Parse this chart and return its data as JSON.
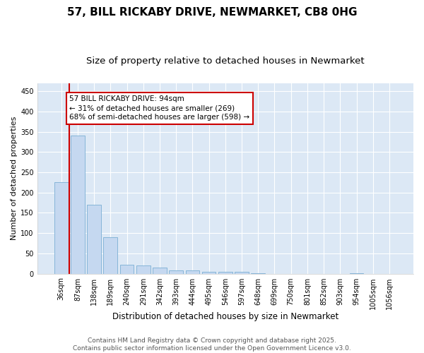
{
  "title": "57, BILL RICKABY DRIVE, NEWMARKET, CB8 0HG",
  "subtitle": "Size of property relative to detached houses in Newmarket",
  "xlabel": "Distribution of detached houses by size in Newmarket",
  "ylabel": "Number of detached properties",
  "bar_color": "#c5d8f0",
  "bar_edge_color": "#7aaed4",
  "vline_color": "#cc0000",
  "vline_x": 0.5,
  "categories": [
    "36sqm",
    "87sqm",
    "138sqm",
    "189sqm",
    "240sqm",
    "291sqm",
    "342sqm",
    "393sqm",
    "444sqm",
    "495sqm",
    "546sqm",
    "597sqm",
    "648sqm",
    "699sqm",
    "750sqm",
    "801sqm",
    "852sqm",
    "903sqm",
    "954sqm",
    "1005sqm",
    "1056sqm"
  ],
  "values": [
    225,
    340,
    170,
    90,
    22,
    20,
    15,
    8,
    8,
    4,
    4,
    4,
    1,
    0,
    0,
    0,
    0,
    0,
    1,
    0,
    0
  ],
  "ylim": [
    0,
    470
  ],
  "yticks": [
    0,
    50,
    100,
    150,
    200,
    250,
    300,
    350,
    400,
    450
  ],
  "annotation_text": "57 BILL RICKABY DRIVE: 94sqm\n← 31% of detached houses are smaller (269)\n68% of semi-detached houses are larger (598) →",
  "annotation_box_facecolor": "#ffffff",
  "annotation_box_edgecolor": "#cc0000",
  "fig_facecolor": "#ffffff",
  "plot_facecolor": "#dce8f5",
  "grid_color": "#ffffff",
  "footer_text": "Contains HM Land Registry data © Crown copyright and database right 2025.\nContains public sector information licensed under the Open Government Licence v3.0.",
  "title_fontsize": 11,
  "subtitle_fontsize": 9.5,
  "xlabel_fontsize": 8.5,
  "ylabel_fontsize": 8,
  "tick_fontsize": 7,
  "annotation_fontsize": 7.5,
  "footer_fontsize": 6.5
}
